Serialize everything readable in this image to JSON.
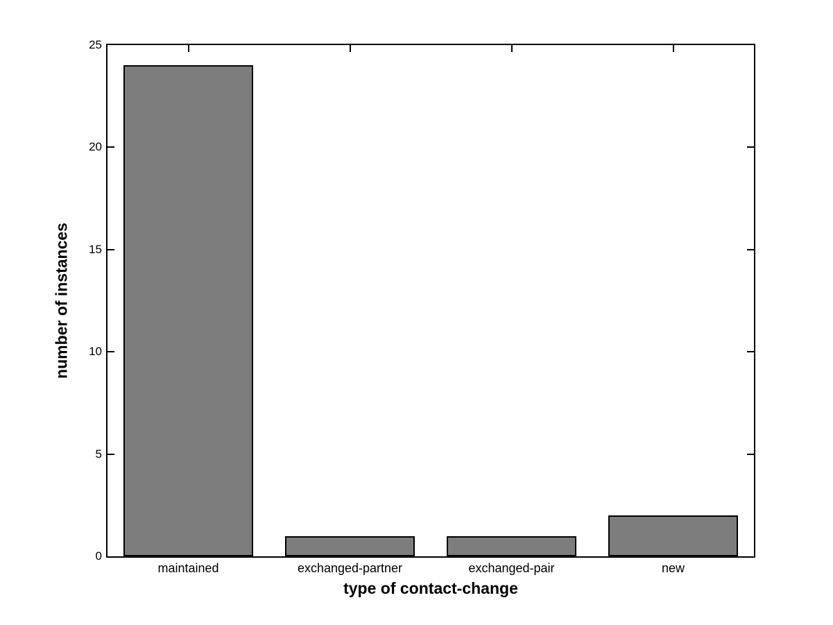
{
  "chart_data": {
    "type": "bar",
    "categories": [
      "maintained",
      "exchanged-partner",
      "exchanged-pair",
      "new"
    ],
    "values": [
      24,
      1,
      1,
      2
    ],
    "xlabel": "type of contact-change",
    "ylabel": "number of instances",
    "ylim": [
      0,
      25
    ],
    "yticks": [
      0,
      5,
      10,
      15,
      20,
      25
    ],
    "bar_fill_color": "#7d7d7d",
    "bar_edge_color": "#000000",
    "axis_color": "#000000",
    "background_color": "#ffffff",
    "grid": false,
    "legend": null,
    "bar_width_fraction": 0.8
  }
}
